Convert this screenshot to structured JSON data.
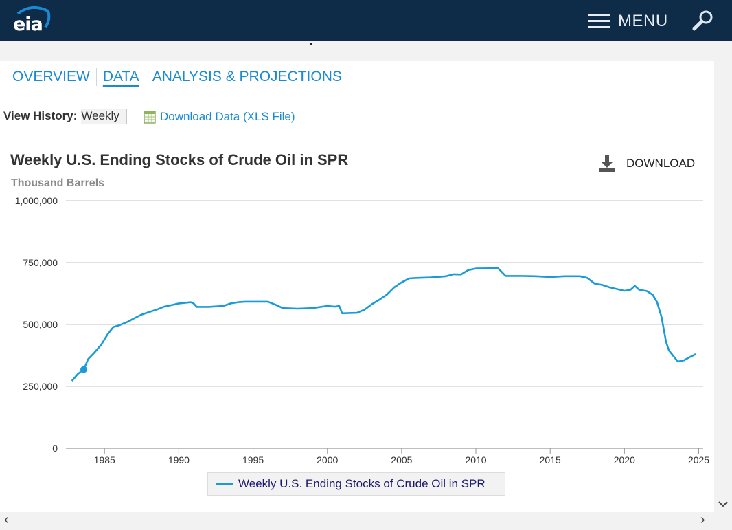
{
  "header": {
    "logo_text": "eia",
    "menu_label": "MENU"
  },
  "tabs": [
    {
      "label": "OVERVIEW",
      "active": false
    },
    {
      "label": "DATA",
      "active": true
    },
    {
      "label": "ANALYSIS & PROJECTIONS",
      "active": false
    }
  ],
  "history": {
    "label": "View History:",
    "value": "Weekly"
  },
  "download_data": {
    "label": "Download Data (XLS File)"
  },
  "download_button": {
    "label": "DOWNLOAD"
  },
  "colors": {
    "header_bg": "#0e2b47",
    "link": "#1a8ad4",
    "series": "#1a9bd7"
  },
  "chart_data": {
    "type": "line",
    "title": "Weekly U.S. Ending Stocks of Crude Oil in SPR",
    "subtitle": "Thousand Barrels",
    "xlabel": "",
    "ylabel": "",
    "x_ticks": [
      "1985",
      "1990",
      "1995",
      "2000",
      "2005",
      "2010",
      "2015",
      "2020",
      "2025"
    ],
    "y_ticks": [
      "1,000,000",
      "750,000",
      "500,000",
      "250,000",
      "0"
    ],
    "xlim": [
      1982.4,
      2025.3
    ],
    "ylim": [
      0,
      1000000
    ],
    "grid": "horizontal",
    "legend_position": "bottom-center",
    "series": [
      {
        "name": "Weekly U.S. Ending Stocks of Crude Oil in SPR",
        "x": [
          1982.8,
          1983.2,
          1983.6,
          1983.9,
          1984.3,
          1984.8,
          1985.2,
          1985.6,
          1986.0,
          1986.6,
          1987.0,
          1987.5,
          1988.0,
          1988.6,
          1989.0,
          1989.5,
          1990.0,
          1990.5,
          1990.8,
          1991.0,
          1991.2,
          1992.0,
          1993.0,
          1993.5,
          1994.0,
          1994.5,
          1995.0,
          1996.0,
          1996.5,
          1997.0,
          1998.0,
          1999.0,
          2000.0,
          2000.5,
          2000.8,
          2001.0,
          2002.0,
          2002.5,
          2003.0,
          2003.5,
          2004.0,
          2004.5,
          2005.0,
          2005.5,
          2006.0,
          2007.0,
          2008.0,
          2008.5,
          2009.0,
          2009.5,
          2010.0,
          2011.0,
          2011.5,
          2012.0,
          2013.0,
          2014.0,
          2015.0,
          2016.0,
          2017.0,
          2017.5,
          2018.0,
          2018.5,
          2019.0,
          2019.5,
          2020.0,
          2020.4,
          2020.7,
          2021.0,
          2021.5,
          2021.9,
          2022.2,
          2022.5,
          2022.8,
          2023.0,
          2023.3,
          2023.6,
          2024.0,
          2024.4,
          2024.8
        ],
        "values": [
          272000,
          300000,
          318000,
          360000,
          385000,
          420000,
          460000,
          490000,
          497000,
          512000,
          525000,
          540000,
          550000,
          562000,
          572000,
          578000,
          585000,
          588000,
          590000,
          585000,
          571000,
          571000,
          575000,
          585000,
          590000,
          592000,
          592000,
          592000,
          580000,
          566000,
          564000,
          566000,
          575000,
          572000,
          575000,
          545000,
          547000,
          560000,
          582000,
          600000,
          620000,
          650000,
          670000,
          686000,
          688000,
          690000,
          695000,
          703000,
          702000,
          720000,
          726000,
          727000,
          727000,
          696000,
          696000,
          695000,
          692000,
          695000,
          695000,
          688000,
          665000,
          660000,
          650000,
          643000,
          636000,
          640000,
          656000,
          640000,
          635000,
          620000,
          590000,
          530000,
          430000,
          395000,
          372000,
          350000,
          355000,
          368000,
          380000
        ]
      }
    ],
    "highlight_point": {
      "x": 1983.6,
      "y": 318000
    }
  }
}
